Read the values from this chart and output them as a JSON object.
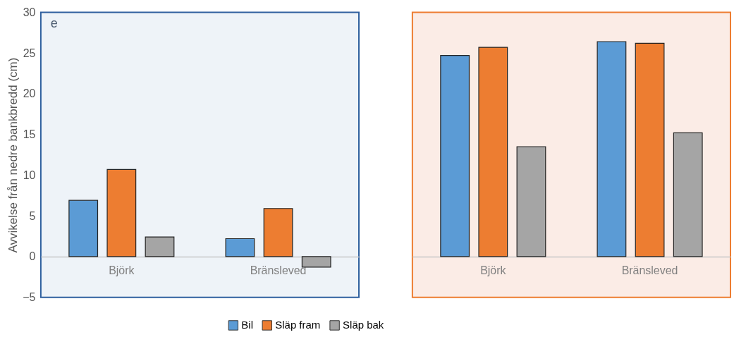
{
  "chart_data": [
    {
      "type": "bar",
      "categories": [
        "Björk",
        "Bränsleved"
      ],
      "ylabel": "Avvikelse från nedre bankbredd (cm)",
      "ylim": [
        -5,
        30
      ],
      "yticks": [
        -5,
        0,
        5,
        10,
        15,
        20,
        25,
        30
      ],
      "legend": "bottom",
      "annotations": [
        "e"
      ],
      "series": [
        {
          "name": "Bil",
          "color": "#5b9bd5",
          "values": [
            6.9,
            2.2
          ]
        },
        {
          "name": "Släp fram",
          "color": "#ed7d31",
          "values": [
            10.7,
            5.9
          ]
        },
        {
          "name": "Släp bak",
          "color": "#a5a5a5",
          "values": [
            2.4,
            -1.3
          ]
        }
      ]
    },
    {
      "type": "bar",
      "categories": [
        "Björk",
        "Bränsleved"
      ],
      "ylim": [
        -5,
        30
      ],
      "yticks": [
        -5,
        0,
        5,
        10,
        15,
        20,
        25,
        30
      ],
      "tick_labels": "x",
      "series": [
        {
          "name": "Bil",
          "color": "#5b9bd5",
          "values": [
            24.7,
            26.4
          ]
        },
        {
          "name": "Släp fram",
          "color": "#ed7d31",
          "values": [
            25.7,
            26.2
          ]
        },
        {
          "name": "Släp bak",
          "color": "#a5a5a5",
          "values": [
            13.5,
            15.2
          ]
        }
      ]
    }
  ]
}
